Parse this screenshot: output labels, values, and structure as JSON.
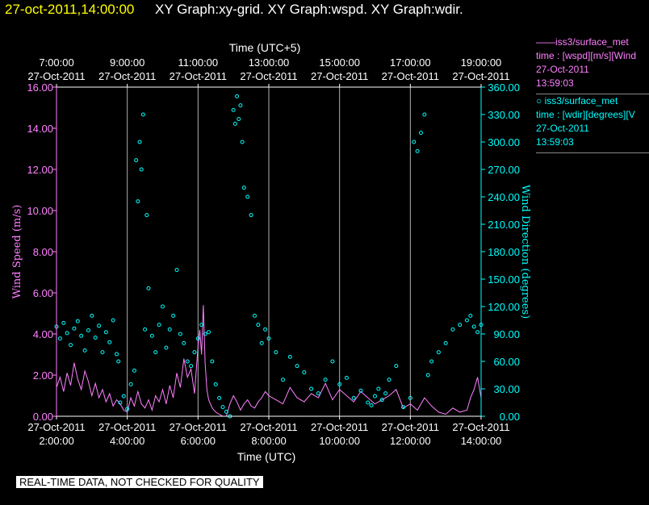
{
  "header": {
    "datetime": "27-oct-2011,14:00:00",
    "graphs": "XY Graph:xy-grid.  XY Graph:wspd.  XY Graph:wdir."
  },
  "legend": [
    {
      "series": "——iss3/surface_met",
      "desc": "time : [wspd][m/s][Wind",
      "date": "27-Oct-2011",
      "time": "13:59:03"
    },
    {
      "series": "○  iss3/surface_met",
      "desc": "time : [wdir][degrees][V",
      "date": "27-Oct-2011",
      "time": "13:59:03"
    }
  ],
  "footer": {
    "qc_notice": "REAL-TIME DATA, NOT CHECKED FOR QUALITY"
  },
  "colors": {
    "speed": "#ff80ff",
    "direction": "#00ffff",
    "frame": "#ffffff",
    "background": "#000000"
  },
  "chart_data": {
    "type": "line",
    "top_axis_title": "Time (UTC+5)",
    "top_ticks": [
      {
        "time": "7:00:00",
        "date": "27-Oct-2011"
      },
      {
        "time": "9:00:00",
        "date": "27-Oct-2011"
      },
      {
        "time": "11:00:00",
        "date": "27-Oct-2011"
      },
      {
        "time": "13:00:00",
        "date": "27-Oct-2011"
      },
      {
        "time": "15:00:00",
        "date": "27-Oct-2011"
      },
      {
        "time": "17:00:00",
        "date": "27-Oct-2011"
      },
      {
        "time": "19:00:00",
        "date": "27-Oct-2011"
      }
    ],
    "bottom_axis_title": "Time (UTC)",
    "bottom_ticks": [
      {
        "time": "2:00:00",
        "date": "27-Oct-2011"
      },
      {
        "time": "4:00:00",
        "date": "27-Oct-2011"
      },
      {
        "time": "6:00:00",
        "date": "27-Oct-2011"
      },
      {
        "time": "8:00:00",
        "date": "27-Oct-2011"
      },
      {
        "time": "10:00:00",
        "date": "27-Oct-2011"
      },
      {
        "time": "12:00:00",
        "date": "27-Oct-2011"
      },
      {
        "time": "14:00:00",
        "date": "27-Oct-2011"
      }
    ],
    "xlim_hours_utc": [
      2,
      14
    ],
    "gridlines_hours_utc": [
      4,
      6,
      8,
      10,
      12
    ],
    "y_left": {
      "label": "Wind Speed (m/s)",
      "ylim": [
        0,
        16
      ],
      "ticks": [
        "0.00",
        "2.00",
        "4.00",
        "6.00",
        "8.00",
        "10.00",
        "12.00",
        "14.00",
        "16.00"
      ]
    },
    "y_right": {
      "label": "Wind Direction (degrees)",
      "ylim": [
        0,
        360
      ],
      "ticks": [
        "0.00",
        "30.00",
        "60.00",
        "90.00",
        "120.00",
        "150.00",
        "180.00",
        "210.00",
        "240.00",
        "270.00",
        "300.00",
        "330.00",
        "360.00"
      ]
    },
    "series": [
      {
        "name": "wspd",
        "axis": "left",
        "style": "line",
        "x_hours_utc": [
          2.0,
          2.1,
          2.2,
          2.3,
          2.4,
          2.5,
          2.6,
          2.7,
          2.8,
          2.9,
          3.0,
          3.1,
          3.2,
          3.3,
          3.4,
          3.5,
          3.6,
          3.7,
          3.8,
          3.9,
          4.0,
          4.1,
          4.2,
          4.3,
          4.4,
          4.5,
          4.6,
          4.7,
          4.8,
          4.9,
          5.0,
          5.1,
          5.2,
          5.3,
          5.4,
          5.5,
          5.6,
          5.7,
          5.8,
          5.9,
          6.0,
          6.05,
          6.1,
          6.15,
          6.2,
          6.25,
          6.3,
          6.4,
          6.5,
          6.6,
          6.7,
          6.8,
          6.9,
          7.0,
          7.1,
          7.2,
          7.3,
          7.4,
          7.5,
          7.6,
          7.7,
          7.8,
          7.9,
          8.0,
          8.2,
          8.4,
          8.6,
          8.8,
          9.0,
          9.2,
          9.4,
          9.6,
          9.8,
          10.0,
          10.2,
          10.4,
          10.6,
          10.8,
          11.0,
          11.2,
          11.4,
          11.6,
          11.8,
          12.0,
          12.2,
          12.4,
          12.6,
          12.8,
          13.0,
          13.2,
          13.4,
          13.6,
          13.7,
          13.8,
          13.9,
          14.0
        ],
        "values": [
          1.4,
          1.9,
          1.2,
          2.1,
          1.5,
          2.6,
          1.8,
          1.3,
          2.2,
          1.7,
          1.0,
          1.6,
          0.9,
          1.3,
          0.7,
          1.1,
          0.5,
          0.8,
          0.6,
          0.3,
          0.2,
          0.9,
          0.5,
          1.2,
          0.6,
          0.4,
          0.8,
          0.3,
          1.0,
          0.7,
          1.3,
          0.6,
          1.5,
          0.9,
          2.1,
          1.4,
          2.8,
          1.9,
          2.3,
          1.1,
          3.4,
          4.2,
          3.0,
          5.4,
          2.6,
          1.3,
          0.8,
          0.4,
          0.2,
          0.1,
          0.0,
          0.0,
          0.6,
          1.0,
          0.7,
          0.3,
          0.6,
          0.8,
          0.5,
          0.4,
          0.7,
          0.9,
          1.2,
          1.0,
          0.8,
          0.6,
          1.4,
          0.9,
          0.7,
          1.1,
          0.9,
          1.6,
          0.8,
          1.3,
          1.0,
          0.7,
          1.2,
          0.9,
          0.6,
          0.8,
          1.0,
          1.3,
          0.4,
          0.6,
          0.3,
          0.9,
          0.5,
          0.2,
          0.1,
          0.4,
          0.2,
          0.3,
          0.9,
          1.3,
          1.9,
          0.9
        ]
      },
      {
        "name": "wdir",
        "axis": "right",
        "style": "scatter",
        "x_hours_utc": [
          2.0,
          2.1,
          2.2,
          2.3,
          2.4,
          2.5,
          2.6,
          2.7,
          2.8,
          2.9,
          3.0,
          3.1,
          3.2,
          3.3,
          3.4,
          3.5,
          3.6,
          3.7,
          3.75,
          3.8,
          3.9,
          4.0,
          4.1,
          4.2,
          4.25,
          4.3,
          4.35,
          4.4,
          4.45,
          4.5,
          4.55,
          4.6,
          4.7,
          4.8,
          4.9,
          5.0,
          5.1,
          5.2,
          5.3,
          5.4,
          5.5,
          5.6,
          5.7,
          5.8,
          5.9,
          6.0,
          6.1,
          6.2,
          6.3,
          6.4,
          6.5,
          6.6,
          6.7,
          6.8,
          6.9,
          7.0,
          7.05,
          7.1,
          7.15,
          7.2,
          7.25,
          7.3,
          7.4,
          7.5,
          7.6,
          7.7,
          7.8,
          7.9,
          8.0,
          8.2,
          8.4,
          8.6,
          8.8,
          9.0,
          9.2,
          9.4,
          9.6,
          9.8,
          10.0,
          10.2,
          10.4,
          10.6,
          10.8,
          10.9,
          11.0,
          11.1,
          11.2,
          11.3,
          11.4,
          11.6,
          11.8,
          12.0,
          12.1,
          12.2,
          12.3,
          12.4,
          12.5,
          12.6,
          12.8,
          13.0,
          13.2,
          13.4,
          13.6,
          13.7,
          13.8,
          13.9,
          14.0
        ],
        "values": [
          98,
          85,
          102,
          91,
          78,
          96,
          104,
          88,
          72,
          94,
          110,
          86,
          99,
          70,
          92,
          81,
          105,
          68,
          60,
          15,
          22,
          8,
          35,
          50,
          280,
          235,
          300,
          270,
          330,
          95,
          220,
          140,
          88,
          70,
          100,
          120,
          75,
          95,
          110,
          160,
          90,
          80,
          60,
          55,
          70,
          85,
          100,
          90,
          92,
          60,
          35,
          20,
          10,
          5,
          0,
          335,
          320,
          350,
          325,
          340,
          300,
          250,
          240,
          220,
          110,
          100,
          80,
          95,
          85,
          70,
          40,
          65,
          55,
          48,
          30,
          25,
          40,
          60,
          35,
          42,
          20,
          28,
          15,
          12,
          22,
          30,
          18,
          25,
          40,
          55,
          10,
          20,
          300,
          290,
          310,
          330,
          45,
          60,
          70,
          80,
          95,
          100,
          105,
          110,
          98,
          92,
          100
        ]
      }
    ]
  }
}
